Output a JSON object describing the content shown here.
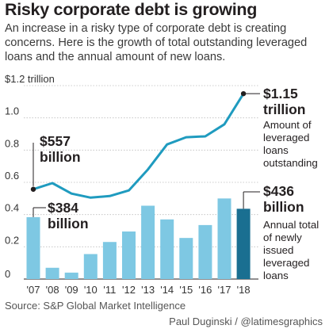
{
  "chart_data": {
    "type": "bar+line",
    "title": "Risky corporate debt is growing",
    "subtitle": "An increase in a risky type of corporate debt is creating concerns. Here is the growth of total outstanding leveraged loans and the annual amount of new loans.",
    "categories": [
      "'07",
      "'08",
      "'09",
      "'10",
      "'11",
      "'12",
      "'13",
      "'14",
      "'15",
      "'16",
      "'17",
      "'18"
    ],
    "y_tick_labels": [
      "$1.2 trillion",
      "1.0",
      "0.8",
      "0.6",
      "0.4",
      "0.2",
      "0"
    ],
    "y_tick_values": [
      1.2,
      1.0,
      0.8,
      0.6,
      0.4,
      0.2,
      0
    ],
    "ylim": [
      0,
      1.2
    ],
    "series": [
      {
        "name": "Amount of leveraged loans outstanding",
        "type": "line",
        "color": "#1f9bbf",
        "values": [
          0.557,
          0.595,
          0.53,
          0.505,
          0.515,
          0.55,
          0.68,
          0.835,
          0.88,
          0.885,
          0.96,
          1.15
        ]
      },
      {
        "name": "Annual total of newly issued leveraged loans",
        "type": "bar",
        "color": "#7ec8e3",
        "highlight_color": "#1a6f91",
        "values": [
          0.384,
          0.07,
          0.04,
          0.155,
          0.23,
          0.295,
          0.455,
          0.37,
          0.255,
          0.335,
          0.5,
          0.436
        ]
      }
    ],
    "annotations": {
      "line_start_value": "$557",
      "line_start_unit": "billion",
      "line_end_value": "$1.15",
      "line_end_unit": "trillion",
      "line_end_desc": [
        "Amount of",
        "leveraged",
        "loans",
        "outstanding"
      ],
      "bar_start_value": "$384",
      "bar_start_unit": "billion",
      "bar_end_value": "$436",
      "bar_end_unit": "billion",
      "bar_end_desc": [
        "Annual total",
        "of newly",
        "issued",
        "leveraged",
        "loans"
      ]
    },
    "grid": true
  },
  "source": "Source: S&P Global Market Intelligence",
  "credit": "Paul Duginski / @latimesgraphics"
}
